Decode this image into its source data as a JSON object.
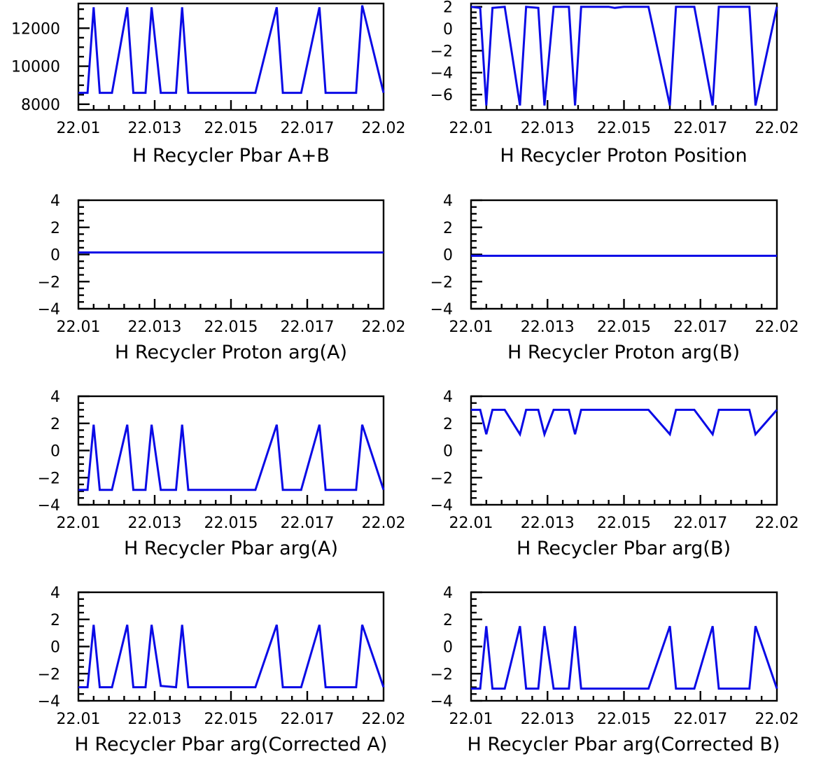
{
  "color": "#0a0ae6",
  "chart_data": [
    {
      "type": "line",
      "title": "H Recycler Pbar A+B",
      "xlim": [
        22.01,
        22.02
      ],
      "xticks": [
        "22.01",
        "22.013",
        "22.015",
        "22.017",
        "22.02"
      ],
      "ylim": [
        7700,
        13300
      ],
      "yticks": [
        "8000",
        "10000",
        "12000"
      ],
      "x": [
        22.01,
        22.0103,
        22.0105,
        22.0107,
        22.0111,
        22.0116,
        22.0118,
        22.0122,
        22.0124,
        22.0127,
        22.0132,
        22.0134,
        22.0136,
        22.014,
        22.0145,
        22.0147,
        22.015,
        22.0158,
        22.0165,
        22.0167,
        22.0169,
        22.0173,
        22.0179,
        22.0181,
        22.0183,
        22.0187,
        22.0191,
        22.0193,
        22.02
      ],
      "y": [
        8600,
        8600,
        13100,
        8600,
        8600,
        13100,
        8600,
        8600,
        13100,
        8600,
        8600,
        13100,
        8600,
        8600,
        8600,
        8600,
        8600,
        8600,
        13100,
        8600,
        8600,
        8600,
        13100,
        8600,
        8600,
        8600,
        8600,
        13200,
        8600
      ]
    },
    {
      "type": "line",
      "title": "H Recycler Proton Position",
      "xlim": [
        22.01,
        22.02
      ],
      "xticks": [
        "22.01",
        "22.013",
        "22.015",
        "22.017",
        "22.02"
      ],
      "ylim": [
        -7.4,
        2.3
      ],
      "yticks": [
        "2",
        "0",
        "−2",
        "−4",
        "−6"
      ],
      "x": [
        22.01,
        22.0103,
        22.0105,
        22.0107,
        22.0111,
        22.0116,
        22.0118,
        22.0122,
        22.0124,
        22.0127,
        22.0132,
        22.0134,
        22.0136,
        22.014,
        22.0145,
        22.0147,
        22.015,
        22.0158,
        22.0165,
        22.0167,
        22.0169,
        22.0173,
        22.0179,
        22.0181,
        22.0183,
        22.0187,
        22.0191,
        22.0193,
        22.02
      ],
      "y": [
        2.0,
        1.9,
        -7.0,
        1.9,
        2.0,
        -7.0,
        2.0,
        1.9,
        -7.0,
        2.0,
        2.0,
        -7.0,
        2.0,
        2.0,
        2.0,
        1.9,
        2.0,
        2.0,
        -7.0,
        2.0,
        2.0,
        2.0,
        -7.0,
        2.0,
        2.0,
        2.0,
        2.0,
        -7.0,
        2.0
      ]
    },
    {
      "type": "line",
      "title": "H Recycler Proton arg(A)",
      "xlim": [
        22.01,
        22.02
      ],
      "xticks": [
        "22.01",
        "22.013",
        "22.015",
        "22.017",
        "22.02"
      ],
      "ylim": [
        -4,
        4
      ],
      "yticks": [
        "4",
        "2",
        "0",
        "−2",
        "−4"
      ],
      "x": [
        22.01,
        22.02
      ],
      "y": [
        0.15,
        0.15
      ]
    },
    {
      "type": "line",
      "title": "H Recycler Proton arg(B)",
      "xlim": [
        22.01,
        22.02
      ],
      "xticks": [
        "22.01",
        "22.013",
        "22.015",
        "22.017",
        "22.02"
      ],
      "ylim": [
        -4,
        4
      ],
      "yticks": [
        "4",
        "2",
        "0",
        "−2",
        "−4"
      ],
      "x": [
        22.01,
        22.02
      ],
      "y": [
        -0.1,
        -0.1
      ]
    },
    {
      "type": "line",
      "title": "H Recycler Pbar arg(A)",
      "xlim": [
        22.01,
        22.02
      ],
      "xticks": [
        "22.01",
        "22.013",
        "22.015",
        "22.017",
        "22.02"
      ],
      "ylim": [
        -4,
        4
      ],
      "yticks": [
        "4",
        "2",
        "0",
        "−2",
        "−4"
      ],
      "x": [
        22.01,
        22.0103,
        22.0105,
        22.0107,
        22.0111,
        22.0116,
        22.0118,
        22.0122,
        22.0124,
        22.0127,
        22.0132,
        22.0134,
        22.0136,
        22.014,
        22.0145,
        22.0147,
        22.015,
        22.0158,
        22.0165,
        22.0167,
        22.0169,
        22.0173,
        22.0179,
        22.0181,
        22.0183,
        22.0187,
        22.0191,
        22.0193,
        22.02
      ],
      "y": [
        -2.9,
        -2.9,
        1.9,
        -2.9,
        -2.9,
        1.9,
        -2.9,
        -2.9,
        1.9,
        -2.9,
        -2.9,
        1.9,
        -2.9,
        -2.9,
        -2.9,
        -2.9,
        -2.9,
        -2.9,
        1.9,
        -2.9,
        -2.9,
        -2.9,
        1.9,
        -2.9,
        -2.9,
        -2.9,
        -2.9,
        1.9,
        -2.9
      ]
    },
    {
      "type": "line",
      "title": "H Recycler Pbar arg(B)",
      "xlim": [
        22.01,
        22.02
      ],
      "xticks": [
        "22.01",
        "22.013",
        "22.015",
        "22.017",
        "22.02"
      ],
      "ylim": [
        -4,
        4
      ],
      "yticks": [
        "4",
        "2",
        "0",
        "−2",
        "−4"
      ],
      "x": [
        22.01,
        22.0103,
        22.0105,
        22.0107,
        22.0111,
        22.0116,
        22.0118,
        22.0122,
        22.0124,
        22.0127,
        22.0132,
        22.0134,
        22.0136,
        22.014,
        22.0145,
        22.0147,
        22.015,
        22.0158,
        22.0165,
        22.0167,
        22.0169,
        22.0173,
        22.0179,
        22.0181,
        22.0183,
        22.0187,
        22.0191,
        22.0193,
        22.02
      ],
      "y": [
        3.0,
        3.0,
        1.2,
        3.0,
        3.0,
        1.2,
        3.0,
        3.0,
        1.2,
        3.0,
        3.0,
        1.2,
        3.0,
        3.0,
        3.0,
        3.0,
        3.0,
        3.0,
        1.2,
        3.0,
        3.0,
        3.0,
        1.2,
        3.0,
        3.0,
        3.0,
        3.0,
        1.2,
        3.0
      ]
    },
    {
      "type": "line",
      "title": "H Recycler Pbar arg(Corrected A)",
      "xlim": [
        22.01,
        22.02
      ],
      "xticks": [
        "22.01",
        "22.013",
        "22.015",
        "22.017",
        "22.02"
      ],
      "ylim": [
        -4,
        4
      ],
      "yticks": [
        "4",
        "2",
        "0",
        "−2",
        "−4"
      ],
      "x": [
        22.01,
        22.0103,
        22.0105,
        22.0107,
        22.0111,
        22.0116,
        22.0118,
        22.0122,
        22.0124,
        22.0127,
        22.0132,
        22.0134,
        22.0136,
        22.014,
        22.0145,
        22.0147,
        22.015,
        22.0158,
        22.0165,
        22.0167,
        22.0169,
        22.0173,
        22.0179,
        22.0181,
        22.0183,
        22.0187,
        22.0191,
        22.0193,
        22.02
      ],
      "y": [
        -3.0,
        -3.0,
        1.6,
        -3.0,
        -3.0,
        1.6,
        -3.0,
        -3.0,
        1.6,
        -2.9,
        -3.0,
        1.6,
        -3.0,
        -3.0,
        -3.0,
        -3.0,
        -3.0,
        -3.0,
        1.6,
        -3.0,
        -3.0,
        -3.0,
        1.6,
        -3.0,
        -3.0,
        -3.0,
        -3.0,
        1.6,
        -3.0
      ]
    },
    {
      "type": "line",
      "title": "H Recycler Pbar arg(Corrected B)",
      "xlim": [
        22.01,
        22.02
      ],
      "xticks": [
        "22.01",
        "22.013",
        "22.015",
        "22.017",
        "22.02"
      ],
      "ylim": [
        -4,
        4
      ],
      "yticks": [
        "4",
        "2",
        "0",
        "−2",
        "−4"
      ],
      "x": [
        22.01,
        22.0103,
        22.0105,
        22.0107,
        22.0111,
        22.0116,
        22.0118,
        22.0122,
        22.0124,
        22.0127,
        22.0132,
        22.0134,
        22.0136,
        22.014,
        22.0145,
        22.0147,
        22.015,
        22.0158,
        22.0165,
        22.0167,
        22.0169,
        22.0173,
        22.0179,
        22.0181,
        22.0183,
        22.0187,
        22.0191,
        22.0193,
        22.02
      ],
      "y": [
        -3.1,
        -3.1,
        1.5,
        -3.1,
        -3.1,
        1.5,
        -3.1,
        -3.1,
        1.5,
        -3.1,
        -3.1,
        1.5,
        -3.1,
        -3.1,
        -3.1,
        -3.1,
        -3.1,
        -3.1,
        1.5,
        -3.1,
        -3.1,
        -3.1,
        1.5,
        -3.1,
        -3.1,
        -3.1,
        -3.1,
        1.5,
        -3.1
      ]
    }
  ]
}
